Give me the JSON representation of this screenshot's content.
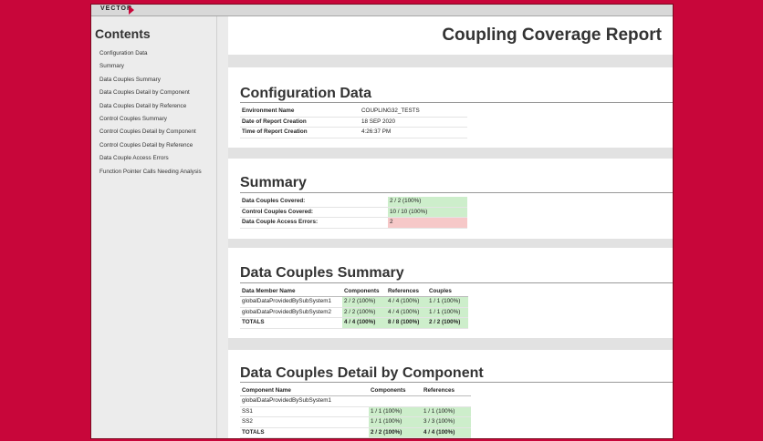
{
  "brand": {
    "logo_text": "VECTOR"
  },
  "sidebar": {
    "heading": "Contents",
    "items": [
      "Configuration Data",
      "Summary",
      "Data Couples Summary",
      "Data Couples Detail by Component",
      "Data Couples Detail by Reference",
      "Control Couples Summary",
      "Control Couples Detail by Component",
      "Control Couples Detail by Reference",
      "Data Couple Access Errors",
      "Function Pointer Calls Needing Analysis"
    ]
  },
  "report": {
    "title": "Coupling Coverage Report"
  },
  "config": {
    "title": "Configuration Data",
    "rows": [
      {
        "label": "Environment Name",
        "value": "COUPLING32_TESTS"
      },
      {
        "label": "Date of Report Creation",
        "value": "18 SEP 2020"
      },
      {
        "label": "Time of Report Creation",
        "value": "4:26:37 PM"
      }
    ]
  },
  "summary": {
    "title": "Summary",
    "rows": [
      {
        "label": "Data Couples Covered:",
        "value": "2 / 2 (100%)",
        "status": "ok"
      },
      {
        "label": "Control Couples Covered:",
        "value": "10 / 10 (100%)",
        "status": "ok"
      },
      {
        "label": "Data Couple Access Errors:",
        "value": "2",
        "status": "error"
      }
    ]
  },
  "data_couples_summary": {
    "title": "Data Couples Summary",
    "headers": [
      "Data Member Name",
      "Components",
      "References",
      "Couples"
    ],
    "rows": [
      [
        "globalDataProvidedBySubSystem1",
        "2 / 2 (100%)",
        "4 / 4 (100%)",
        "1 / 1 (100%)"
      ],
      [
        "globalDataProvidedBySubSystem2",
        "2 / 2 (100%)",
        "4 / 4 (100%)",
        "1 / 1 (100%)"
      ]
    ],
    "totals": [
      "TOTALS",
      "4 / 4 (100%)",
      "8 / 8 (100%)",
      "2 / 2 (100%)"
    ]
  },
  "data_couples_detail": {
    "title": "Data Couples Detail by Component",
    "headers": [
      "Component Name",
      "Components",
      "References"
    ],
    "group": "globalDataProvidedBySubSystem1",
    "rows": [
      [
        "SS1",
        "1 / 1 (100%)",
        "1 / 1 (100%)"
      ],
      [
        "SS2",
        "1 / 1 (100%)",
        "3 / 3 (100%)"
      ]
    ],
    "totals": [
      "TOTALS",
      "2 / 2 (100%)",
      "4 / 4 (100%)"
    ]
  }
}
